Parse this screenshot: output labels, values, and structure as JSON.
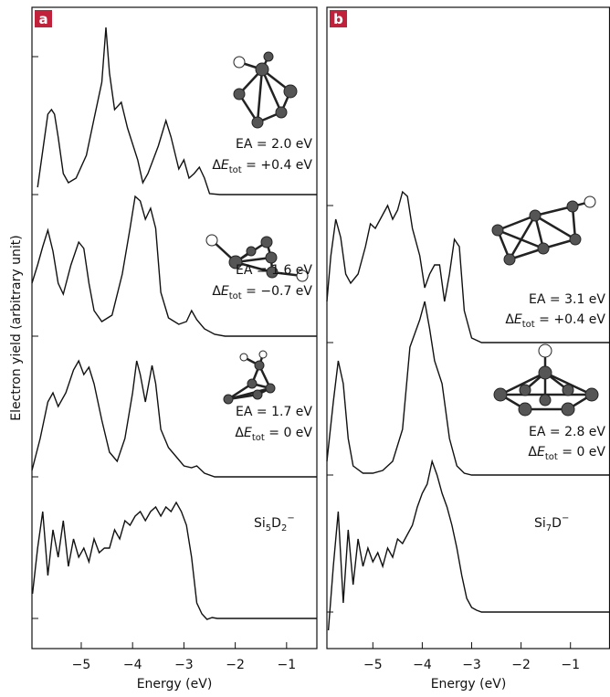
{
  "chart_data": [
    {
      "type": "line",
      "label": "a",
      "xlabel": "Energy (eV)",
      "ylabel": "Electron yield (arbitrary unit)",
      "xlim": [
        -5.96,
        -0.41
      ],
      "ylim": [
        0,
        70.2
      ],
      "xticks": [
        {
          "value": -5,
          "label": "−5"
        },
        {
          "value": -4,
          "label": "−4"
        },
        {
          "value": -3,
          "label": "−3"
        },
        {
          "value": -2,
          "label": "−2"
        },
        {
          "value": -1,
          "label": "−1"
        }
      ],
      "series": [
        {
          "color": "#111",
          "x": [
            -5.85,
            -5.75,
            -5.65,
            -5.58,
            -5.52,
            -5.45,
            -5.35,
            -5.25,
            -5.1,
            -4.9,
            -4.75,
            -4.6,
            -4.52,
            -4.45,
            -4.35,
            -4.22,
            -4.1,
            -3.9,
            -3.8,
            -3.7,
            -3.5,
            -3.35,
            -3.25,
            -3.1,
            -3.0,
            -2.9,
            -2.8,
            -2.7,
            -2.6,
            -2.5,
            -2.3,
            -0.41
          ],
          "values": [
            50.5,
            54.5,
            58.5,
            59,
            58.5,
            56,
            52,
            51,
            51.5,
            54,
            58,
            62,
            68,
            63,
            59,
            59.8,
            57,
            53.5,
            51,
            52,
            55,
            57.8,
            56,
            52.5,
            53.5,
            51.5,
            52,
            52.7,
            51.5,
            49.8,
            49.7,
            49.7
          ]
        },
        {
          "color": "#111",
          "x": [
            -5.96,
            -5.85,
            -5.75,
            -5.65,
            -5.55,
            -5.45,
            -5.35,
            -5.2,
            -5.05,
            -4.95,
            -4.85,
            -4.75,
            -4.6,
            -4.4,
            -4.2,
            -4.05,
            -3.95,
            -3.85,
            -3.75,
            -3.65,
            -3.55,
            -3.45,
            -3.3,
            -3.1,
            -2.95,
            -2.85,
            -2.75,
            -2.6,
            -2.4,
            -2.2,
            -0.41
          ],
          "values": [
            40,
            42,
            44,
            45.8,
            43.5,
            40,
            38.8,
            42,
            44.5,
            43.8,
            40,
            37,
            35.8,
            36.5,
            41,
            46,
            49.5,
            49,
            47,
            48.2,
            46,
            39,
            36.2,
            35.5,
            35.8,
            37,
            36,
            35,
            34.4,
            34.2,
            34.2
          ]
        },
        {
          "color": "#111",
          "x": [
            -5.96,
            -5.8,
            -5.65,
            -5.55,
            -5.45,
            -5.3,
            -5.15,
            -5.05,
            -4.95,
            -4.85,
            -4.75,
            -4.6,
            -4.45,
            -4.3,
            -4.15,
            -4.0,
            -3.92,
            -3.85,
            -3.75,
            -3.62,
            -3.55,
            -3.45,
            -3.3,
            -3.15,
            -3.0,
            -2.85,
            -2.75,
            -2.6,
            -2.4,
            -0.41
          ],
          "values": [
            19.5,
            23,
            27,
            28,
            26.5,
            28,
            30.5,
            31.5,
            30,
            30.8,
            29,
            25,
            21.5,
            20.5,
            23,
            28,
            31.5,
            30,
            27,
            31,
            29,
            24,
            22,
            21,
            20,
            19.8,
            20,
            19.2,
            18.8,
            18.8
          ]
        },
        {
          "color": "#111",
          "x": [
            -5.95,
            -5.85,
            -5.75,
            -5.65,
            -5.55,
            -5.45,
            -5.35,
            -5.25,
            -5.15,
            -5.05,
            -4.95,
            -4.85,
            -4.75,
            -4.65,
            -4.55,
            -4.45,
            -4.35,
            -4.25,
            -4.15,
            -4.05,
            -3.95,
            -3.85,
            -3.75,
            -3.65,
            -3.55,
            -3.45,
            -3.35,
            -3.25,
            -3.15,
            -3.05,
            -2.95,
            -2.85,
            -2.75,
            -2.65,
            -2.55,
            -2.45,
            -2.35,
            -2.25,
            -2.15,
            -0.41
          ],
          "values": [
            6,
            11,
            15,
            8,
            13,
            10,
            14,
            9,
            12,
            10,
            11,
            9.5,
            12,
            10.5,
            11,
            11,
            13,
            12,
            14,
            13.5,
            14.5,
            15,
            14,
            15,
            15.5,
            14.5,
            15.5,
            15,
            16,
            15,
            13.5,
            10,
            5,
            3.8,
            3.2,
            3.4,
            3.3,
            3.3,
            3.3,
            3.3
          ]
        }
      ],
      "annotations": [
        {
          "ea": "EA = 2.0 eV",
          "delta": "Δ",
          "e": "E",
          "sub": "tot",
          "rest": " = +0.4 eV"
        },
        {
          "ea": "EA = 1.6 eV",
          "delta": "Δ",
          "e": "E",
          "sub": "tot",
          "rest": " = −0.7 eV"
        },
        {
          "ea": "EA = 1.7 eV",
          "delta": "Δ",
          "e": "E",
          "sub": "tot",
          "rest": " = 0 eV"
        }
      ],
      "species": [
        "Si",
        "5",
        "D",
        "2",
        "−"
      ]
    },
    {
      "type": "line",
      "label": "b",
      "xlabel": "Energy (eV)",
      "xlim": [
        -5.93,
        -0.2
      ],
      "ylim": [
        0,
        70.2
      ],
      "xticks": [
        {
          "value": -5,
          "label": "−5"
        },
        {
          "value": -4,
          "label": "−4"
        },
        {
          "value": -3,
          "label": "−3"
        },
        {
          "value": -2,
          "label": "−2"
        },
        {
          "value": -1,
          "label": "−1"
        }
      ],
      "series": [
        {
          "color": "#111",
          "x": [
            -5.93,
            -5.85,
            -5.75,
            -5.65,
            -5.55,
            -5.45,
            -5.3,
            -5.15,
            -5.05,
            -4.95,
            -4.85,
            -4.7,
            -4.6,
            -4.5,
            -4.4,
            -4.3,
            -4.2,
            -4.05,
            -3.95,
            -3.85,
            -3.75,
            -3.65,
            -3.55,
            -3.45,
            -3.35,
            -3.25,
            -3.15,
            -3.0,
            -2.8,
            -0.2
          ],
          "values": [
            38,
            43,
            47,
            45,
            41,
            40,
            41,
            44,
            46.5,
            46,
            47,
            48.5,
            47,
            48,
            50,
            49.5,
            46,
            43,
            39.5,
            41,
            42,
            42,
            38,
            41,
            44.8,
            44,
            37,
            34,
            33.5,
            33.5
          ]
        },
        {
          "color": "#111",
          "x": [
            -5.93,
            -5.8,
            -5.7,
            -5.6,
            -5.5,
            -5.4,
            -5.2,
            -5.0,
            -4.8,
            -4.6,
            -4.4,
            -4.25,
            -4.15,
            -4.05,
            -3.95,
            -3.85,
            -3.75,
            -3.6,
            -3.45,
            -3.3,
            -3.15,
            -3.0,
            -0.2
          ],
          "values": [
            20.5,
            27,
            31.5,
            29,
            23,
            20,
            19.2,
            19.2,
            19.5,
            20.5,
            24,
            33,
            34.5,
            36,
            38,
            35,
            31.5,
            29,
            23,
            20,
            19.2,
            19,
            19
          ]
        },
        {
          "color": "#111",
          "x": [
            -5.9,
            -5.8,
            -5.7,
            -5.6,
            -5.5,
            -5.4,
            -5.3,
            -5.2,
            -5.1,
            -5.0,
            -4.9,
            -4.8,
            -4.7,
            -4.6,
            -4.5,
            -4.4,
            -4.3,
            -4.2,
            -4.1,
            -4.0,
            -3.9,
            -3.8,
            -3.7,
            -3.6,
            -3.5,
            -3.4,
            -3.3,
            -3.2,
            -3.1,
            -3.0,
            -2.9,
            -2.8,
            -0.2
          ],
          "values": [
            2,
            9,
            15,
            5,
            13,
            7,
            12,
            9,
            11,
            9.5,
            10.5,
            9,
            11,
            10,
            12,
            11.5,
            12.5,
            13.5,
            15.5,
            17,
            18,
            20.5,
            19,
            17,
            15.5,
            13.5,
            11,
            8,
            5.5,
            4.5,
            4.2,
            4,
            4
          ]
        }
      ],
      "annotations": [
        {
          "ea": "EA = 3.1 eV",
          "delta": "Δ",
          "e": "E",
          "sub": "tot",
          "rest": " = +0.4 eV"
        },
        {
          "ea": "EA = 2.8 eV",
          "delta": "Δ",
          "e": "E",
          "sub": "tot",
          "rest": " = 0 eV"
        }
      ],
      "species": [
        "Si",
        "7",
        "D",
        "−"
      ]
    }
  ]
}
